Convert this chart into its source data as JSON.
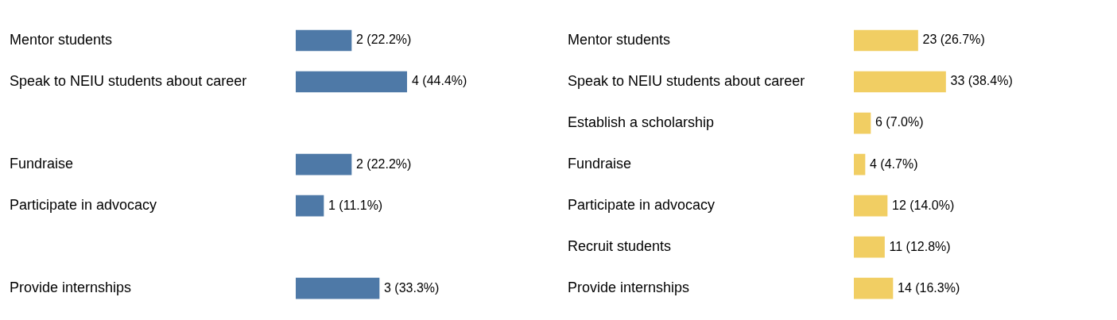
{
  "chart_data": [
    {
      "type": "bar",
      "orientation": "horizontal",
      "categories": [
        "Mentor students",
        "Speak to NEIU students about career",
        null,
        "Fundraise",
        "Participate in advocacy",
        null,
        "Provide internships"
      ],
      "values": [
        2,
        4,
        null,
        2,
        1,
        null,
        3
      ],
      "value_labels": [
        "2 (22.2%)",
        "4 (44.4%)",
        null,
        "2 (22.2%)",
        "1 (11.1%)",
        null,
        "3 (33.3%)"
      ],
      "color": "#4e79a7",
      "tick_labels": "y"
    },
    {
      "type": "bar",
      "orientation": "horizontal",
      "categories": [
        "Mentor students",
        "Speak to NEIU students about career",
        "Establish a scholarship",
        "Fundraise",
        "Participate in advocacy",
        "Recruit students",
        "Provide internships"
      ],
      "values": [
        23,
        33,
        6,
        4,
        12,
        11,
        14
      ],
      "value_labels": [
        "23 (26.7%)",
        "33 (38.4%)",
        "6 (7.0%)",
        "4 (4.7%)",
        "12 (14.0%)",
        "11 (12.8%)",
        "14 (16.3%)"
      ],
      "color": "#f1ce63",
      "tick_labels": "y"
    }
  ]
}
